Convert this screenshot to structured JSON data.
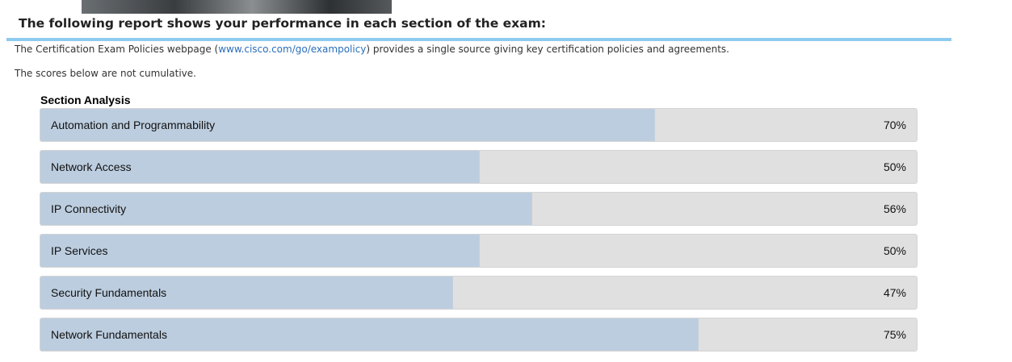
{
  "header": {
    "title": "The following report shows your performance in each section of the exam:"
  },
  "policy": {
    "before": "The Certification Exam Policies webpage (",
    "link": "www.cisco.com/go/exampolicy",
    "after": ") provides a single source giving key certification policies and agreements."
  },
  "note": "The scores below are not cumulative.",
  "chart_data": {
    "type": "bar",
    "orientation": "horizontal",
    "title": "Section Analysis",
    "categories": [
      "Automation and Programmability",
      "Network Access",
      "IP Connectivity",
      "IP Services",
      "Security Fundamentals",
      "Network Fundamentals"
    ],
    "values": [
      70,
      50,
      56,
      50,
      47,
      75
    ],
    "value_labels": [
      "70%",
      "50%",
      "56%",
      "50%",
      "47%",
      "75%"
    ],
    "xlim": [
      0,
      100
    ],
    "color": "#bccddf",
    "track_color": "#e0e0e0"
  }
}
